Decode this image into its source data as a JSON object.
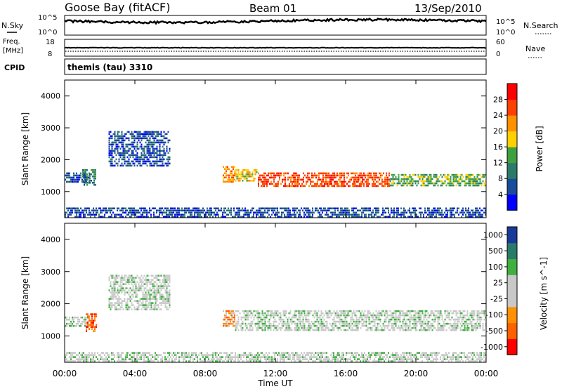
{
  "header": {
    "station": "Goose Bay (fitACF)",
    "beam": "Beam 01",
    "date": "13/Sep/2010"
  },
  "noise_panel": {
    "left_label": "N.Sky",
    "right_label": "N.Search",
    "left_ticks": [
      "10^5",
      "10^0"
    ],
    "right_ticks": [
      "10^5",
      "10^0"
    ]
  },
  "freq_panel": {
    "left_label_line1": "Freq.",
    "left_label_line2": "[MHz]",
    "right_label": "Nave",
    "left_ticks": [
      "18",
      "8"
    ],
    "right_ticks": [
      "60",
      "0"
    ]
  },
  "cpid_panel": {
    "label": "CPID",
    "value": "themis (tau) 3310"
  },
  "colors": {
    "power_scale": [
      "#0000ff",
      "#1a4a9a",
      "#2e7a6a",
      "#3fa040",
      "#ffd000",
      "#ff9000",
      "#ff4000",
      "#ff0000"
    ],
    "velocity_scale": [
      "#1a3a9a",
      "#2a7a6a",
      "#3fb040",
      "#c8c8c8",
      "#c8c8c8",
      "#ff9000",
      "#ff6000",
      "#ff0000"
    ],
    "ground_scatter": "#c8c8c8"
  },
  "chart_data": [
    {
      "type": "heatmap",
      "title": "",
      "xlabel": "Time UT",
      "ylabel": "Slant Range [km]",
      "colorbar_label": "Power [dB]",
      "colorbar_ticks": [
        "28",
        "24",
        "20",
        "16",
        "12",
        "8",
        "4"
      ],
      "x_ticks": [
        "00:00",
        "04:00",
        "08:00",
        "12:00",
        "16:00",
        "20:00",
        "00:00"
      ],
      "y_ticks": [
        "1000",
        "2000",
        "3000",
        "4000"
      ],
      "xlim": [
        0,
        24
      ],
      "ylim": [
        180,
        4500
      ],
      "features": [
        {
          "t_start": 0.0,
          "t_end": 1.4,
          "range_low": 1250,
          "range_high": 1600,
          "level": 1
        },
        {
          "t_start": 1.0,
          "t_end": 1.8,
          "range_low": 1200,
          "range_high": 1700,
          "level": 2
        },
        {
          "t_start": 2.5,
          "t_end": 6.0,
          "range_low": 1800,
          "range_high": 2900,
          "level": 1
        },
        {
          "t_start": 9.0,
          "t_end": 9.7,
          "range_low": 1250,
          "range_high": 1800,
          "level": 5
        },
        {
          "t_start": 9.7,
          "t_end": 11.0,
          "range_low": 1300,
          "range_high": 1700,
          "level": 4
        },
        {
          "t_start": 11.0,
          "t_end": 18.5,
          "range_low": 1150,
          "range_high": 1600,
          "level": 6
        },
        {
          "t_start": 18.5,
          "t_end": 24.0,
          "range_low": 1150,
          "range_high": 1550,
          "level": 3
        },
        {
          "t_start": 0.0,
          "t_end": 24.0,
          "range_low": 200,
          "range_high": 500,
          "level": 1
        }
      ]
    },
    {
      "type": "heatmap",
      "title": "",
      "xlabel": "Time UT",
      "ylabel": "Slant Range [km]",
      "colorbar_label": "Velocity [m s^-1]",
      "colorbar_ticks": [
        "1000",
        "500",
        "100",
        "25",
        "-25",
        "-100",
        "-500",
        "-1000"
      ],
      "x_ticks": [
        "00:00",
        "04:00",
        "08:00",
        "12:00",
        "16:00",
        "20:00",
        "00:00"
      ],
      "y_ticks": [
        "1000",
        "2000",
        "3000",
        "4000"
      ],
      "xlim": [
        0,
        24
      ],
      "ylim": [
        180,
        4500
      ],
      "features": [
        {
          "t_start": 0.0,
          "t_end": 1.4,
          "range_low": 1250,
          "range_high": 1600,
          "level": 3
        },
        {
          "t_start": 1.2,
          "t_end": 1.8,
          "range_low": 1100,
          "range_high": 1700,
          "level": 6
        },
        {
          "t_start": 2.5,
          "t_end": 6.0,
          "range_low": 1800,
          "range_high": 2900,
          "level": 3
        },
        {
          "t_start": 9.0,
          "t_end": 9.7,
          "range_low": 1250,
          "range_high": 1800,
          "level": 5
        },
        {
          "t_start": 9.7,
          "t_end": 24.0,
          "range_low": 1150,
          "range_high": 1800,
          "level": 3
        },
        {
          "t_start": 0.0,
          "t_end": 24.0,
          "range_low": 200,
          "range_high": 500,
          "level": 3
        }
      ]
    }
  ]
}
